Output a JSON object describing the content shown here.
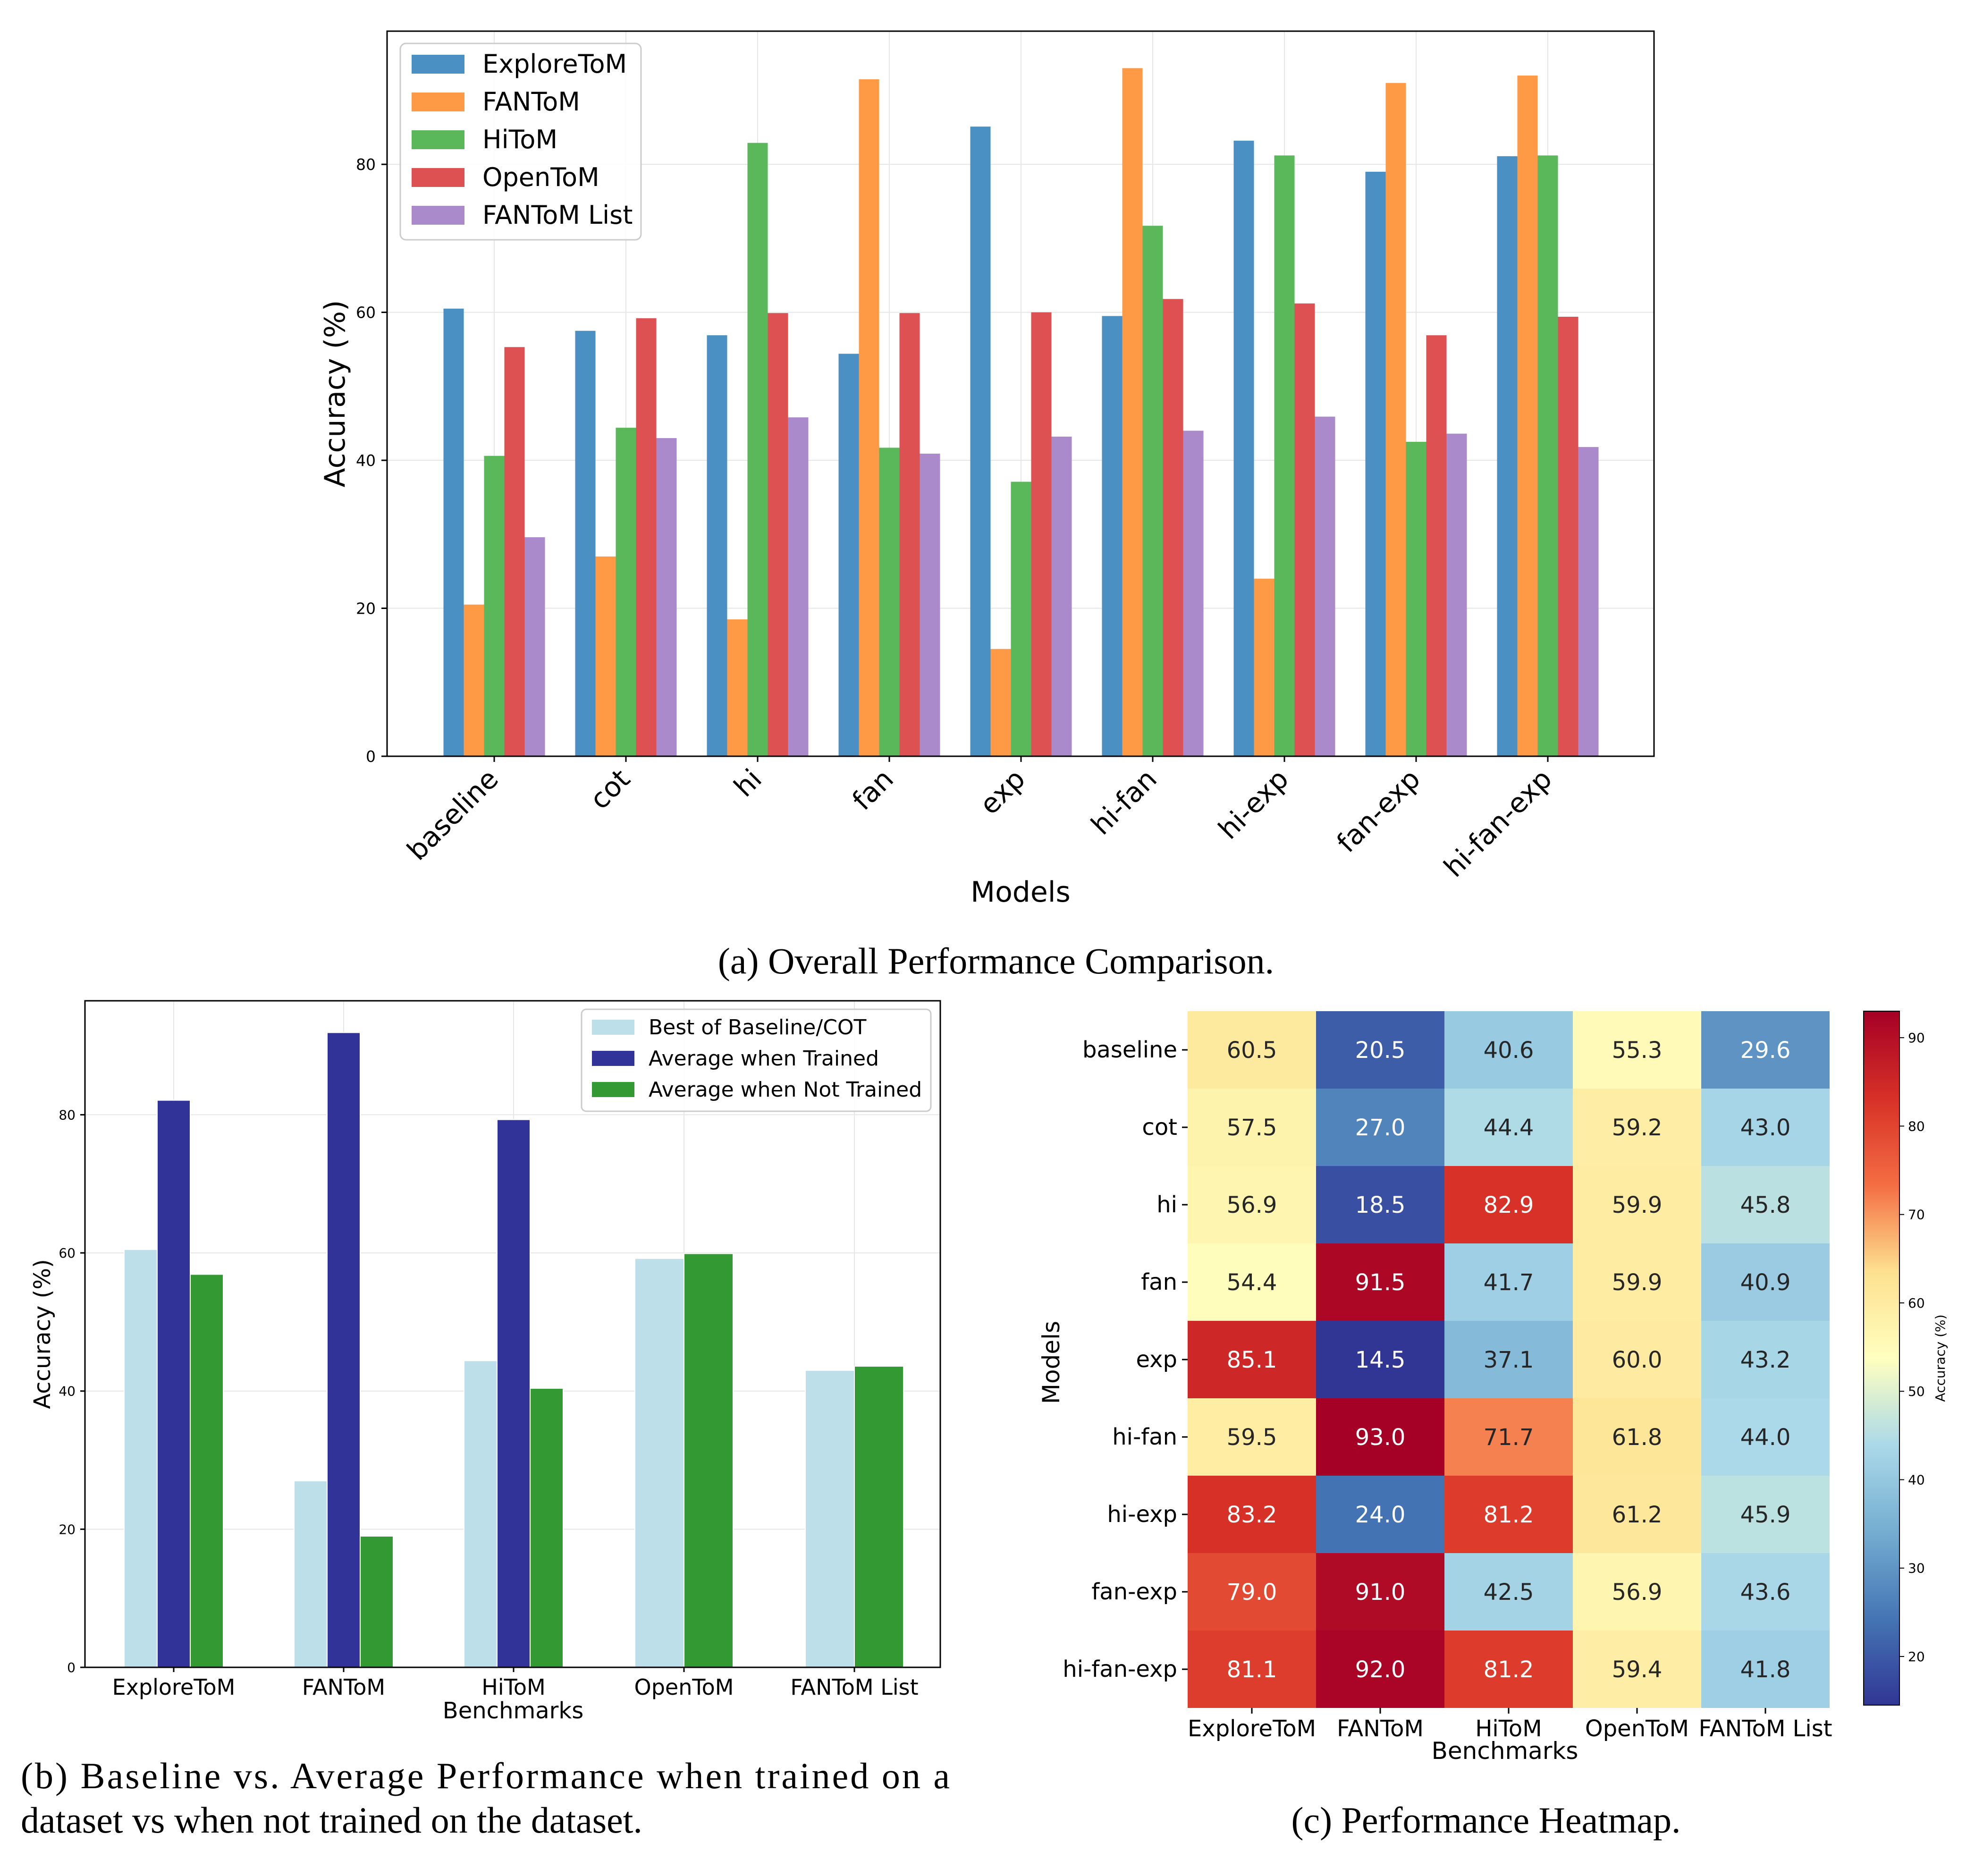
{
  "captions": {
    "a": "(a) Overall Performance Comparison.",
    "b_line1": "(b) Baseline vs.  Average Performance when trained on a",
    "b_line2": "dataset vs when not trained on the dataset.",
    "c": "(c) Performance Heatmap."
  },
  "chart_data": [
    {
      "id": "overall",
      "type": "bar",
      "title": "",
      "xlabel": "Models",
      "ylabel": "Accuracy (%)",
      "ylim": [
        0,
        98
      ],
      "yticks": [
        0,
        20,
        40,
        60,
        80
      ],
      "grid": true,
      "legend_position": "top-left",
      "categories": [
        "baseline",
        "cot",
        "hi",
        "fan",
        "exp",
        "hi-fan",
        "hi-exp",
        "fan-exp",
        "hi-fan-exp"
      ],
      "series": [
        {
          "name": "ExploreToM",
          "color": "#4a90c2",
          "values": [
            60.5,
            57.5,
            56.9,
            54.4,
            85.1,
            59.5,
            83.2,
            79.0,
            81.1
          ]
        },
        {
          "name": "FANToM",
          "color": "#fe9a45",
          "values": [
            20.5,
            27.0,
            18.5,
            91.5,
            14.5,
            93.0,
            24.0,
            91.0,
            92.0
          ]
        },
        {
          "name": "HiToM",
          "color": "#5ab75a",
          "values": [
            40.6,
            44.4,
            82.9,
            41.7,
            37.1,
            71.7,
            81.2,
            42.5,
            81.2
          ]
        },
        {
          "name": "OpenToM",
          "color": "#de5153",
          "values": [
            55.3,
            59.2,
            59.9,
            59.9,
            60.0,
            61.8,
            61.2,
            56.9,
            59.4
          ]
        },
        {
          "name": "FANToM List",
          "color": "#ab8acb",
          "values": [
            29.6,
            43.0,
            45.8,
            40.9,
            43.2,
            44.0,
            45.9,
            43.6,
            41.8
          ]
        }
      ]
    },
    {
      "id": "baseline_vs_avg",
      "type": "bar",
      "title": "",
      "xlabel": "Benchmarks",
      "ylabel": "Accuracy (%)",
      "ylim": [
        0,
        96.5
      ],
      "yticks": [
        0,
        20,
        40,
        60,
        80
      ],
      "grid": true,
      "legend_position": "top-right",
      "categories": [
        "ExploreToM",
        "FANToM",
        "HiToM",
        "OpenToM",
        "FANToM List"
      ],
      "series": [
        {
          "name": "Best of Baseline/COT",
          "color": "#bcdfea",
          "values": [
            60.5,
            27.0,
            44.4,
            59.2,
            43.0
          ]
        },
        {
          "name": "Average when Trained",
          "color": "#323399",
          "values": [
            82.1,
            91.9,
            79.3,
            null,
            null
          ]
        },
        {
          "name": "Average when Not Trained",
          "color": "#339a33",
          "values": [
            56.9,
            19.0,
            40.4,
            59.9,
            43.6
          ]
        }
      ]
    },
    {
      "id": "heatmap",
      "type": "heatmap",
      "title": "",
      "xlabel": "Benchmarks",
      "ylabel": "Models",
      "colorbar_label": "Accuracy (%)",
      "colorbar_range": [
        14.5,
        93.0
      ],
      "colorbar_ticks": [
        20,
        30,
        40,
        50,
        60,
        70,
        80,
        90
      ],
      "columns": [
        "ExploreToM",
        "FANToM",
        "HiToM",
        "OpenToM",
        "FANToM List"
      ],
      "rows": [
        "baseline",
        "cot",
        "hi",
        "fan",
        "exp",
        "hi-fan",
        "hi-exp",
        "fan-exp",
        "hi-fan-exp"
      ],
      "values": [
        [
          60.5,
          20.5,
          40.6,
          55.3,
          29.6
        ],
        [
          57.5,
          27.0,
          44.4,
          59.2,
          43.0
        ],
        [
          56.9,
          18.5,
          82.9,
          59.9,
          45.8
        ],
        [
          54.4,
          91.5,
          41.7,
          59.9,
          40.9
        ],
        [
          85.1,
          14.5,
          37.1,
          60.0,
          43.2
        ],
        [
          59.5,
          93.0,
          71.7,
          61.8,
          44.0
        ],
        [
          83.2,
          24.0,
          81.2,
          61.2,
          45.9
        ],
        [
          79.0,
          91.0,
          42.5,
          56.9,
          43.6
        ],
        [
          81.1,
          92.0,
          81.2,
          59.4,
          41.8
        ]
      ],
      "value_labels": [
        [
          "60.5",
          "20.5",
          "40.6",
          "55.3",
          "29.6"
        ],
        [
          "57.5",
          "27.0",
          "44.4",
          "59.2",
          "43.0"
        ],
        [
          "56.9",
          "18.5",
          "82.9",
          "59.9",
          "45.8"
        ],
        [
          "54.4",
          "91.5",
          "41.7",
          "59.9",
          "40.9"
        ],
        [
          "85.1",
          "14.5",
          "37.1",
          "60.0",
          "43.2"
        ],
        [
          "59.5",
          "93.0",
          "71.7",
          "61.8",
          "44.0"
        ],
        [
          "83.2",
          "24.0",
          "81.2",
          "61.2",
          "45.9"
        ],
        [
          "79.0",
          "91.0",
          "42.5",
          "56.9",
          "43.6"
        ],
        [
          "81.1",
          "92.0",
          "81.2",
          "59.4",
          "41.8"
        ]
      ]
    }
  ]
}
